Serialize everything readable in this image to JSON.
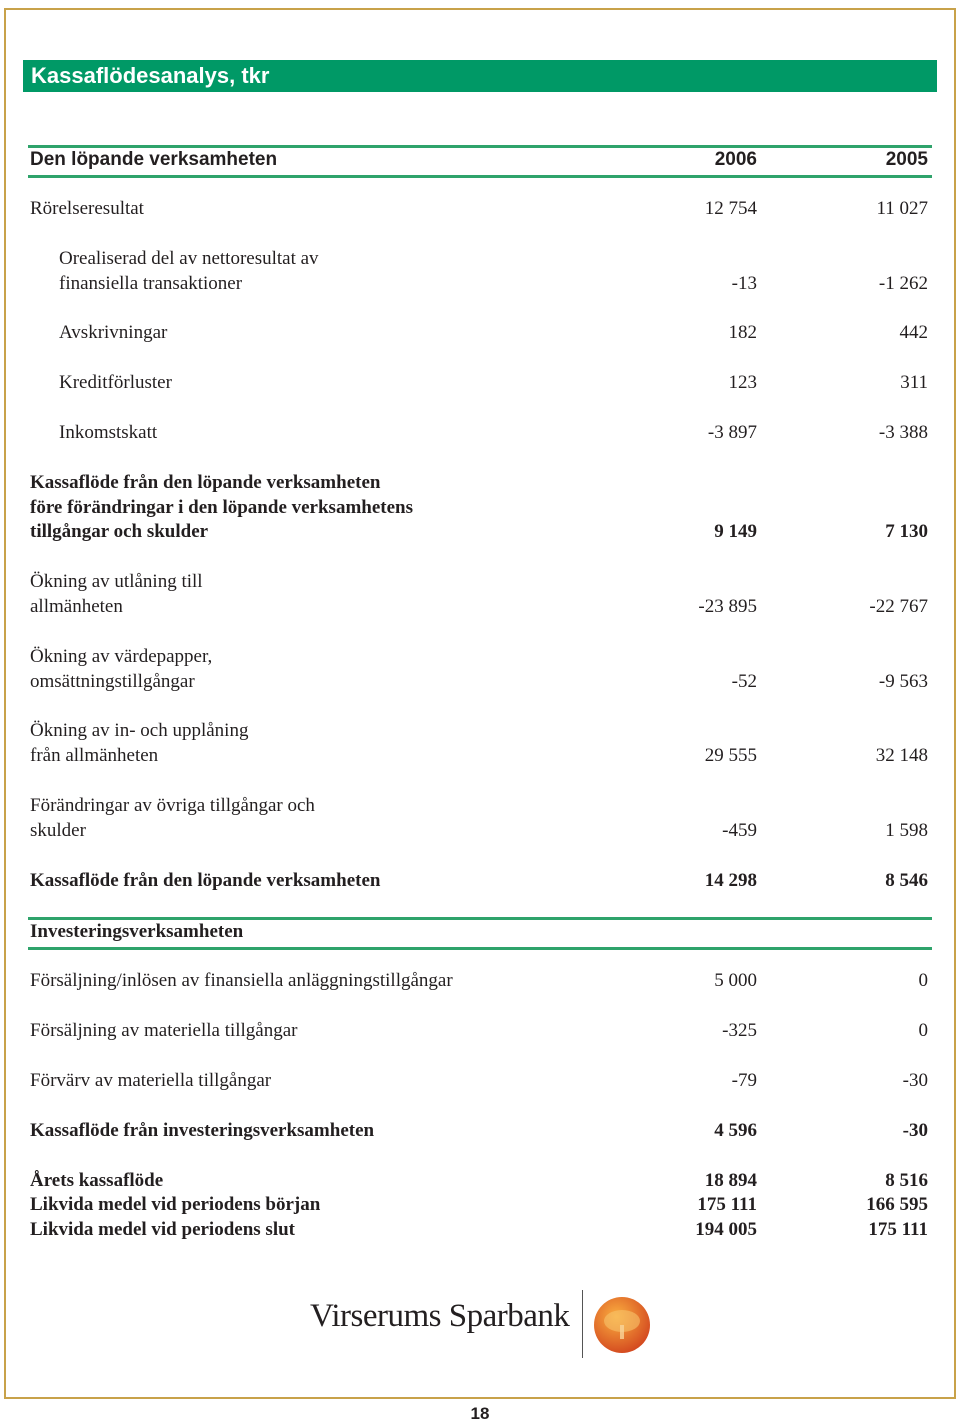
{
  "header": {
    "title": "Kassaflödesanalys, tkr"
  },
  "sections": [
    {
      "heading": "Den löpande verksamheten",
      "columns": [
        "2006",
        "2005"
      ],
      "rows": [
        {
          "label": [
            "Rörelseresultat"
          ],
          "values": [
            "12 754",
            "11 027"
          ]
        },
        {
          "label": [
            "Orealiserad del av nettoresultat av",
            "finansiella transaktioner"
          ],
          "values": [
            "-13",
            "-1 262"
          ],
          "indent": true
        },
        {
          "label": [
            "Avskrivningar"
          ],
          "values": [
            "182",
            "442"
          ],
          "indent": true
        },
        {
          "label": [
            "Kreditförluster"
          ],
          "values": [
            "123",
            "311"
          ],
          "indent": true
        },
        {
          "label": [
            "Inkomstskatt"
          ],
          "values": [
            "-3 897",
            "-3 388"
          ],
          "indent": true
        },
        {
          "label": [
            "Kassaflöde från den löpande verksamheten",
            "före förändringar i den löpande verksamhetens",
            "tillgångar och skulder"
          ],
          "values": [
            "9 149",
            "7 130"
          ],
          "bold": true
        },
        {
          "label": [
            "Ökning av utlåning till",
            "allmänheten"
          ],
          "values": [
            "-23 895",
            "-22 767"
          ]
        },
        {
          "label": [
            "Ökning av värdepapper,",
            "omsättningstillgångar"
          ],
          "values": [
            "-52",
            "-9 563"
          ]
        },
        {
          "label": [
            "Ökning av in- och upplåning",
            "från allmänheten"
          ],
          "values": [
            "29 555",
            "32 148"
          ]
        },
        {
          "label": [
            "Förändringar av övriga tillgångar och",
            "skulder"
          ],
          "values": [
            "-459",
            "1 598"
          ]
        },
        {
          "label": [
            "Kassaflöde från den löpande verksamheten"
          ],
          "values": [
            "14 298",
            "8 546"
          ],
          "bold": true
        }
      ]
    },
    {
      "heading": "Investeringsverksamheten",
      "rows": [
        {
          "label": [
            "Försäljning/inlösen av finansiella anläggningstillgångar"
          ],
          "values": [
            "5 000",
            "0"
          ]
        },
        {
          "label": [
            "Försäljning av materiella tillgångar"
          ],
          "values": [
            "-325",
            "0"
          ]
        },
        {
          "label": [
            "Förvärv av materiella tillgångar"
          ],
          "values": [
            "-79",
            "-30"
          ]
        },
        {
          "label": [
            "Kassaflöde från investeringsverksamheten"
          ],
          "values": [
            "4 596",
            "-30"
          ],
          "bold": true
        }
      ]
    }
  ],
  "summary": [
    {
      "label": [
        "Årets kassaflöde"
      ],
      "values": [
        "18 894",
        "8 516"
      ],
      "bold": true
    },
    {
      "label": [
        "Likvida medel vid periodens början"
      ],
      "values": [
        "175 111",
        "166 595"
      ],
      "bold": true
    },
    {
      "label": [
        "Likvida medel vid periodens slut"
      ],
      "values": [
        "194 005",
        "175 111"
      ],
      "bold": true
    }
  ],
  "footer": {
    "brand": "Virserums Sparbank",
    "page": "18"
  }
}
